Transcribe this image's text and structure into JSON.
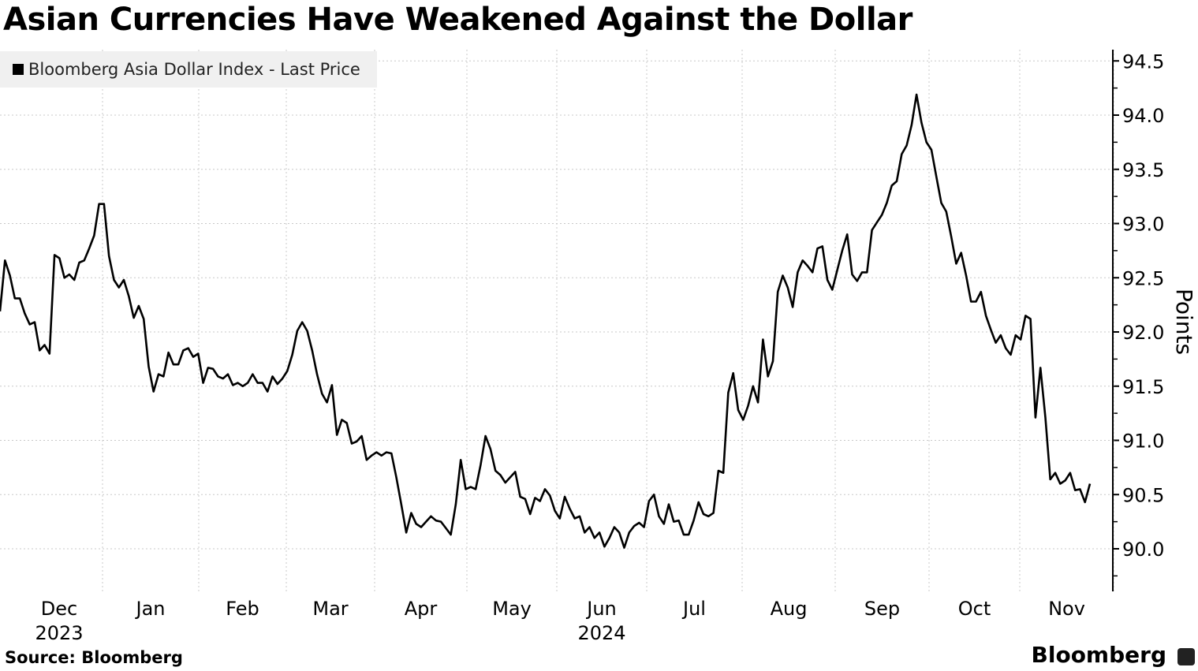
{
  "chart_data": {
    "type": "line",
    "title": "Asian Currencies Have Weakened Against the Dollar",
    "ylabel": "Points",
    "xlabel": "",
    "ylim": [
      89.65,
      94.6
    ],
    "yticks": [
      "90.0",
      "90.5",
      "91.0",
      "91.5",
      "92.0",
      "92.5",
      "93.0",
      "93.5",
      "94.0",
      "94.5"
    ],
    "x_start": "2023-11-28",
    "x_end": "2024-11-22",
    "months": [
      {
        "label": "Dec",
        "year": "2023"
      },
      {
        "label": "Jan",
        "year": ""
      },
      {
        "label": "Feb",
        "year": ""
      },
      {
        "label": "Mar",
        "year": ""
      },
      {
        "label": "Apr",
        "year": ""
      },
      {
        "label": "May",
        "year": ""
      },
      {
        "label": "Jun",
        "year": "2024"
      },
      {
        "label": "Jul",
        "year": ""
      },
      {
        "label": "Aug",
        "year": ""
      },
      {
        "label": "Sep",
        "year": ""
      },
      {
        "label": "Oct",
        "year": ""
      },
      {
        "label": "Nov",
        "year": ""
      }
    ],
    "grid": true,
    "legend_position": "top-left",
    "series": [
      {
        "name": "Bloomberg Asia Dollar Index - Last Price",
        "color": "#000000",
        "values": [
          92.19,
          92.66,
          92.52,
          92.31,
          92.31,
          92.17,
          92.07,
          92.09,
          91.83,
          91.88,
          91.8,
          92.71,
          92.68,
          92.5,
          92.53,
          92.48,
          92.64,
          92.66,
          92.77,
          92.89,
          93.18,
          93.18,
          92.7,
          92.48,
          92.41,
          92.48,
          92.33,
          92.13,
          92.24,
          92.12,
          91.68,
          91.45,
          91.61,
          91.59,
          91.81,
          91.7,
          91.7,
          91.83,
          91.85,
          91.77,
          91.8,
          91.53,
          91.67,
          91.66,
          91.59,
          91.57,
          91.61,
          91.51,
          91.53,
          91.5,
          91.53,
          91.61,
          91.53,
          91.53,
          91.45,
          91.59,
          91.52,
          91.57,
          91.64,
          91.79,
          92.01,
          92.09,
          92.01,
          91.83,
          91.61,
          91.43,
          91.35,
          91.51,
          91.05,
          91.19,
          91.16,
          90.97,
          90.99,
          91.04,
          90.82,
          90.86,
          90.89,
          90.86,
          90.89,
          90.88,
          90.66,
          90.41,
          90.15,
          90.33,
          90.23,
          90.2,
          90.25,
          90.3,
          90.26,
          90.25,
          90.19,
          90.13,
          90.41,
          90.82,
          90.55,
          90.57,
          90.55,
          90.77,
          91.04,
          90.92,
          90.72,
          90.68,
          90.61,
          90.66,
          90.71,
          90.48,
          90.46,
          90.32,
          90.47,
          90.44,
          90.55,
          90.49,
          90.35,
          90.28,
          90.48,
          90.37,
          90.28,
          90.3,
          90.15,
          90.2,
          90.1,
          90.15,
          90.02,
          90.1,
          90.2,
          90.15,
          90.01,
          90.15,
          90.21,
          90.24,
          90.2,
          90.44,
          90.5,
          90.3,
          90.23,
          90.41,
          90.25,
          90.26,
          90.13,
          90.13,
          90.26,
          90.43,
          90.32,
          90.3,
          90.33,
          90.72,
          90.7,
          91.44,
          91.62,
          91.28,
          91.19,
          91.32,
          91.5,
          91.35,
          91.93,
          91.59,
          91.73,
          92.37,
          92.52,
          92.41,
          92.23,
          92.55,
          92.66,
          92.61,
          92.55,
          92.77,
          92.79,
          92.48,
          92.39,
          92.57,
          92.75,
          92.9,
          92.53,
          92.47,
          92.55,
          92.55,
          92.94,
          93.01,
          93.08,
          93.19,
          93.35,
          93.39,
          93.64,
          93.72,
          93.91,
          94.19,
          93.93,
          93.75,
          93.68,
          93.43,
          93.19,
          93.11,
          92.88,
          92.63,
          92.73,
          92.52,
          92.28,
          92.28,
          92.37,
          92.15,
          92.02,
          91.9,
          91.97,
          91.85,
          91.79,
          91.97,
          91.93,
          92.15,
          92.12,
          91.21,
          91.67,
          91.21,
          90.64,
          90.7,
          90.6,
          90.63,
          90.7,
          90.54,
          90.55,
          90.43,
          90.6
        ]
      }
    ]
  },
  "footer": {
    "source": "Source: Bloomberg",
    "brand": "Bloomberg"
  }
}
